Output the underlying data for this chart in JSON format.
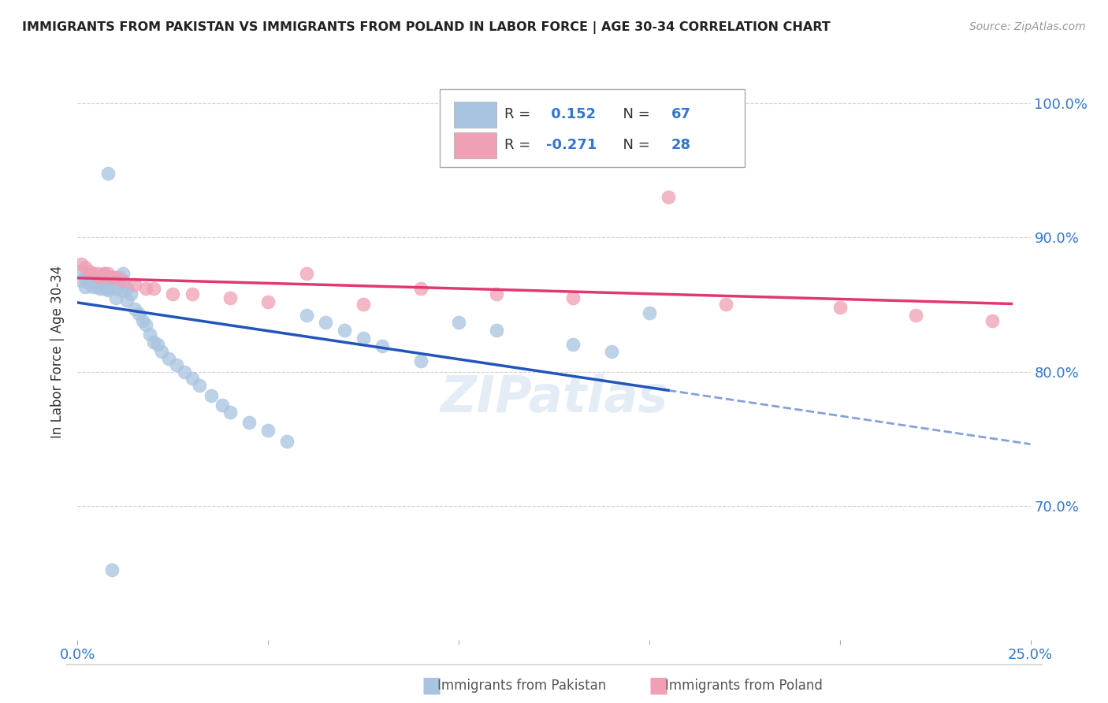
{
  "title": "IMMIGRANTS FROM PAKISTAN VS IMMIGRANTS FROM POLAND IN LABOR FORCE | AGE 30-34 CORRELATION CHART",
  "source": "Source: ZipAtlas.com",
  "ylabel": "In Labor Force | Age 30-34",
  "xlim": [
    0.0,
    0.25
  ],
  "ylim": [
    0.6,
    1.03
  ],
  "r_pakistan": 0.152,
  "n_pakistan": 67,
  "r_poland": -0.271,
  "n_poland": 28,
  "color_pakistan": "#a8c4e0",
  "color_poland": "#f0a0b4",
  "line_color_pakistan": "#2255bb",
  "line_color_poland": "#e03870",
  "pakistan_x": [
    0.001,
    0.001,
    0.002,
    0.002,
    0.003,
    0.003,
    0.003,
    0.004,
    0.004,
    0.004,
    0.005,
    0.005,
    0.005,
    0.006,
    0.006,
    0.006,
    0.007,
    0.007,
    0.007,
    0.007,
    0.008,
    0.008,
    0.008,
    0.008,
    0.009,
    0.009,
    0.01,
    0.01,
    0.01,
    0.011,
    0.012,
    0.012,
    0.013,
    0.013,
    0.014,
    0.015,
    0.016,
    0.017,
    0.018,
    0.019,
    0.02,
    0.021,
    0.022,
    0.024,
    0.026,
    0.028,
    0.03,
    0.032,
    0.035,
    0.038,
    0.04,
    0.045,
    0.05,
    0.055,
    0.06,
    0.065,
    0.07,
    0.075,
    0.08,
    0.09,
    0.1,
    0.11,
    0.13,
    0.14,
    0.15,
    0.009,
    0.008
  ],
  "pakistan_y": [
    0.868,
    0.875,
    0.863,
    0.87,
    0.866,
    0.872,
    0.868,
    0.868,
    0.87,
    0.863,
    0.87,
    0.868,
    0.863,
    0.866,
    0.87,
    0.862,
    0.863,
    0.87,
    0.873,
    0.862,
    0.861,
    0.868,
    0.87,
    0.862,
    0.863,
    0.868,
    0.855,
    0.87,
    0.862,
    0.87,
    0.86,
    0.873,
    0.853,
    0.862,
    0.858,
    0.847,
    0.843,
    0.838,
    0.835,
    0.828,
    0.822,
    0.82,
    0.815,
    0.81,
    0.805,
    0.8,
    0.795,
    0.79,
    0.782,
    0.775,
    0.77,
    0.762,
    0.756,
    0.748,
    0.842,
    0.837,
    0.831,
    0.825,
    0.819,
    0.808,
    0.837,
    0.831,
    0.82,
    0.815,
    0.844,
    0.652,
    0.948
  ],
  "poland_x": [
    0.001,
    0.002,
    0.003,
    0.004,
    0.005,
    0.006,
    0.007,
    0.008,
    0.009,
    0.01,
    0.012,
    0.015,
    0.018,
    0.02,
    0.025,
    0.03,
    0.04,
    0.05,
    0.06,
    0.075,
    0.09,
    0.11,
    0.13,
    0.155,
    0.17,
    0.2,
    0.22,
    0.24
  ],
  "poland_y": [
    0.88,
    0.878,
    0.875,
    0.873,
    0.873,
    0.87,
    0.873,
    0.873,
    0.87,
    0.87,
    0.868,
    0.865,
    0.862,
    0.862,
    0.858,
    0.858,
    0.855,
    0.852,
    0.873,
    0.85,
    0.862,
    0.858,
    0.855,
    0.93,
    0.85,
    0.848,
    0.842,
    0.838
  ]
}
